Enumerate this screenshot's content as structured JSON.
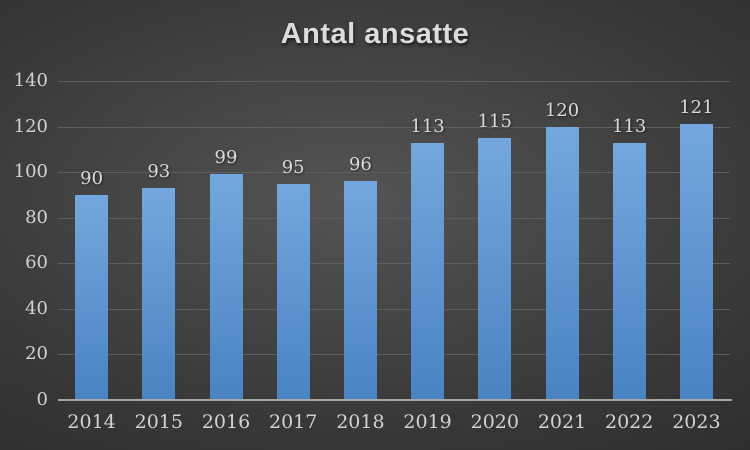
{
  "chart_data": {
    "type": "bar",
    "title": "Antal ansatte",
    "categories": [
      "2014",
      "2015",
      "2016",
      "2017",
      "2018",
      "2019",
      "2020",
      "2021",
      "2022",
      "2023"
    ],
    "values": [
      90,
      93,
      99,
      95,
      96,
      113,
      115,
      120,
      113,
      121
    ],
    "xlabel": "",
    "ylabel": "",
    "ylim": [
      0,
      140
    ],
    "yticks": [
      0,
      20,
      40,
      60,
      80,
      100,
      120,
      140
    ],
    "grid": true,
    "legend": false,
    "data_labels": true,
    "colors": {
      "bar_gradient_top": "#73a7de",
      "bar_gradient_bottom": "#4a83c3",
      "gridline": "#5e5e5e",
      "axis_line": "#a6a6a6",
      "tick_text": "#d2d2d2",
      "data_label_text": "#d9d9d9",
      "title_text": "#dcdcdc",
      "background_center": "#545454",
      "background_mid": "#383838",
      "background_edge": "#232323"
    }
  }
}
